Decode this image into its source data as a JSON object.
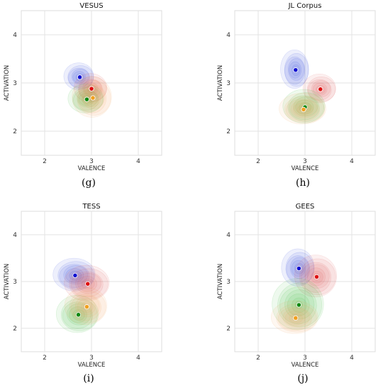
{
  "colors": {
    "blue": "#3a4fe0",
    "red": "#e05a5a",
    "green": "#3fbf3f",
    "orange": "#f0a860"
  },
  "chart_data": [
    {
      "type": "scatter",
      "title": "VESUS",
      "caption": "(g)",
      "xlabel": "VALENCE",
      "ylabel": "ACTIVATION",
      "xlim": [
        1.5,
        4.5
      ],
      "ylim": [
        1.5,
        4.5
      ],
      "xticks": [
        2,
        3,
        4
      ],
      "yticks": [
        2,
        3,
        4
      ],
      "grid": true,
      "series": [
        {
          "color": "blue",
          "center": [
            2.75,
            3.12
          ],
          "spread": [
            0.32,
            0.28
          ]
        },
        {
          "color": "red",
          "center": [
            3.0,
            2.88
          ],
          "spread": [
            0.35,
            0.3
          ]
        },
        {
          "color": "green",
          "center": [
            2.9,
            2.66
          ],
          "spread": [
            0.38,
            0.3
          ]
        },
        {
          "color": "orange",
          "center": [
            3.03,
            2.69
          ],
          "spread": [
            0.42,
            0.42
          ]
        }
      ]
    },
    {
      "type": "scatter",
      "title": "JL Corpus",
      "caption": "(h)",
      "xlabel": "VALENCE",
      "ylabel": "ACTIVATION",
      "xlim": [
        1.5,
        4.5
      ],
      "ylim": [
        1.5,
        4.5
      ],
      "xticks": [
        2,
        3,
        4
      ],
      "yticks": [
        2,
        3,
        4
      ],
      "grid": true,
      "series": [
        {
          "color": "blue",
          "center": [
            2.8,
            3.27
          ],
          "spread": [
            0.3,
            0.4
          ]
        },
        {
          "color": "red",
          "center": [
            3.33,
            2.87
          ],
          "spread": [
            0.35,
            0.3
          ]
        },
        {
          "color": "green",
          "center": [
            3.0,
            2.5
          ],
          "spread": [
            0.45,
            0.35
          ]
        },
        {
          "color": "orange",
          "center": [
            2.97,
            2.45
          ],
          "spread": [
            0.5,
            0.32
          ]
        }
      ]
    },
    {
      "type": "scatter",
      "title": "TESS",
      "caption": "(i)",
      "xlabel": "VALENCE",
      "ylabel": "ACTIVATION",
      "xlim": [
        1.5,
        4.5
      ],
      "ylim": [
        1.5,
        4.5
      ],
      "xticks": [
        2,
        3,
        4
      ],
      "yticks": [
        2,
        3,
        4
      ],
      "grid": true,
      "series": [
        {
          "color": "blue",
          "center": [
            2.65,
            3.13
          ],
          "spread": [
            0.45,
            0.35
          ]
        },
        {
          "color": "red",
          "center": [
            2.92,
            2.95
          ],
          "spread": [
            0.48,
            0.38
          ]
        },
        {
          "color": "green",
          "center": [
            2.72,
            2.29
          ],
          "spread": [
            0.45,
            0.4
          ]
        },
        {
          "color": "orange",
          "center": [
            2.9,
            2.46
          ],
          "spread": [
            0.45,
            0.4
          ]
        }
      ]
    },
    {
      "type": "scatter",
      "title": "GEES",
      "caption": "(j)",
      "xlabel": "VALENCE",
      "ylabel": "ACTIVATION",
      "xlim": [
        1.5,
        4.5
      ],
      "ylim": [
        1.5,
        4.5
      ],
      "xticks": [
        2,
        3,
        4
      ],
      "yticks": [
        2,
        3,
        4
      ],
      "grid": true,
      "series": [
        {
          "color": "blue",
          "center": [
            2.87,
            3.28
          ],
          "spread": [
            0.35,
            0.4
          ]
        },
        {
          "color": "red",
          "center": [
            3.25,
            3.1
          ],
          "spread": [
            0.45,
            0.45
          ]
        },
        {
          "color": "green",
          "center": [
            2.87,
            2.5
          ],
          "spread": [
            0.55,
            0.55
          ]
        },
        {
          "color": "orange",
          "center": [
            2.8,
            2.22
          ],
          "spread": [
            0.5,
            0.35
          ]
        }
      ]
    }
  ]
}
